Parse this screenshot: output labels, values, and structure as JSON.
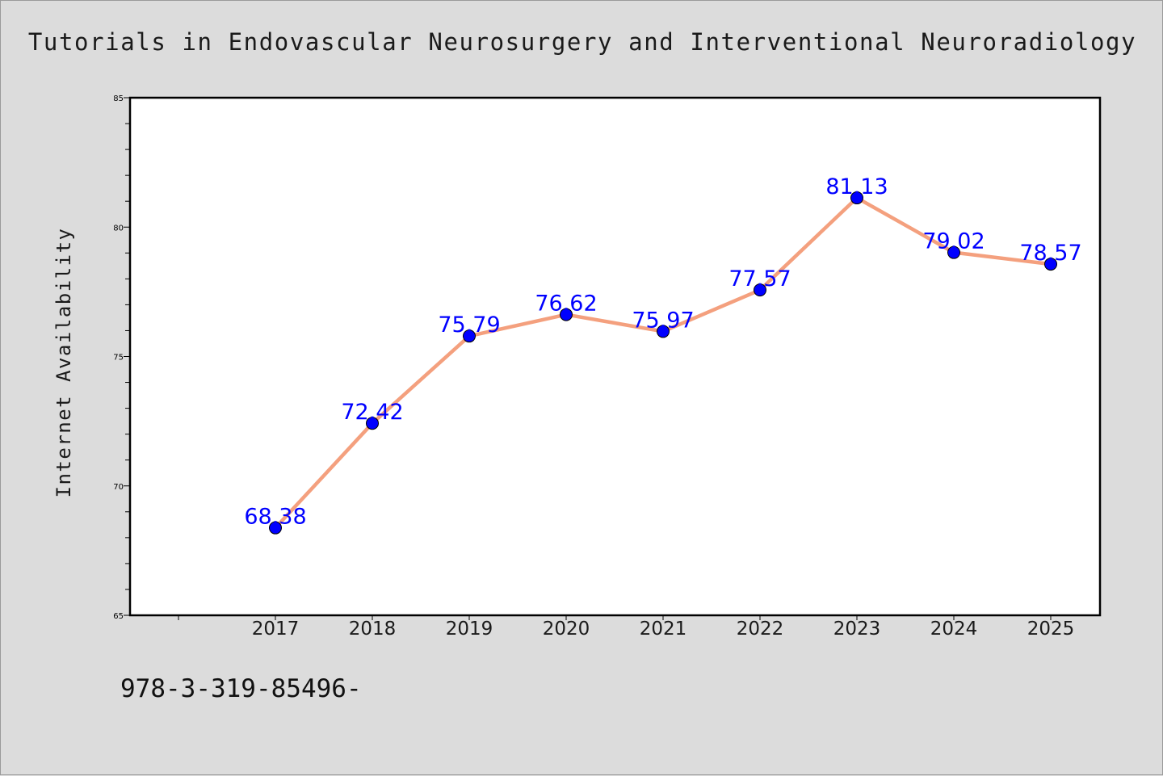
{
  "page": {
    "background": "#dcdcdc",
    "footnote": "978-3-319-85496-"
  },
  "chart_data": {
    "type": "line",
    "title": "Tutorials in Endovascular Neurosurgery and Interventional Neuroradiology",
    "xlabel": "",
    "ylabel": "Internet Availability",
    "categories": [
      "2017",
      "2018",
      "2019",
      "2020",
      "2021",
      "2022",
      "2023",
      "2024",
      "2025"
    ],
    "series": [
      {
        "values": [
          68.38,
          72.42,
          75.79,
          76.62,
          75.97,
          77.57,
          81.13,
          79.02,
          78.57
        ],
        "line_color": "#f4a07e",
        "marker_color": "#0000ff",
        "label_color": "#0000ff"
      }
    ],
    "data_labels": [
      "68.38",
      "72.42",
      "75.79",
      "76.62",
      "75.97",
      "77.57",
      "81.13",
      "79.02",
      "78.57"
    ],
    "ylim": [
      65,
      85
    ],
    "yticks": [
      "65",
      "70",
      "75",
      "80",
      "85"
    ],
    "grid": false,
    "legend": "none",
    "plot_background": "#ffffff"
  }
}
